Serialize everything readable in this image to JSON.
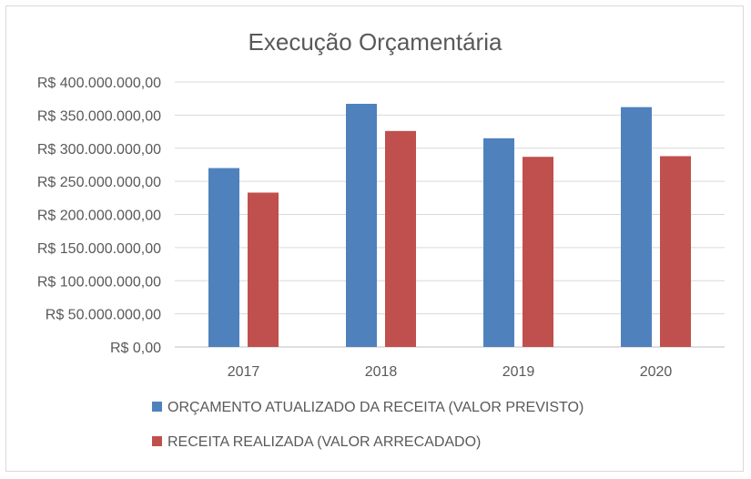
{
  "chart_data": {
    "type": "bar",
    "title": "Execução Orçamentária",
    "categories": [
      "2017",
      "2018",
      "2019",
      "2020"
    ],
    "series": [
      {
        "name": "ORÇAMENTO ATUALIZADO DA RECEITA (VALOR PREVISTO)",
        "color": "#4f81bd",
        "values": [
          270000000,
          367000000,
          315000000,
          362000000
        ]
      },
      {
        "name": "RECEITA REALIZADA (VALOR ARRECADADO)",
        "color": "#c0504d",
        "values": [
          233000000,
          326000000,
          287000000,
          288000000
        ]
      }
    ],
    "ylim": [
      0,
      400000000
    ],
    "ytick_labels": [
      "R$ 0,00",
      "R$ 50.000.000,00",
      "R$ 100.000.000,00",
      "R$ 150.000.000,00",
      "R$ 200.000.000,00",
      "R$ 250.000.000,00",
      "R$ 300.000.000,00",
      "R$ 350.000.000,00",
      "R$ 400.000.000,00"
    ],
    "grid": true,
    "legend_position": "bottom"
  }
}
